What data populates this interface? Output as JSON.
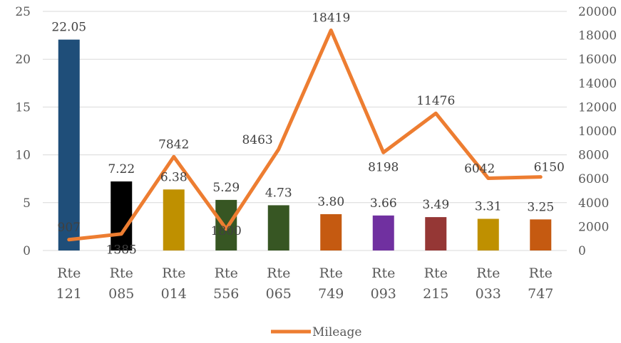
{
  "chart_data": {
    "type": "bar",
    "categories": [
      [
        "Rte",
        "121"
      ],
      [
        "Rte",
        "085"
      ],
      [
        "Rte",
        "014"
      ],
      [
        "Rte",
        "556"
      ],
      [
        "Rte",
        "065"
      ],
      [
        "Rte",
        "749"
      ],
      [
        "Rte",
        "093"
      ],
      [
        "Rte",
        "215"
      ],
      [
        "Rte",
        "033"
      ],
      [
        "Rte",
        "747"
      ]
    ],
    "bar_values": [
      22.05,
      7.22,
      6.38,
      5.29,
      4.73,
      3.8,
      3.66,
      3.49,
      3.31,
      3.25
    ],
    "bar_labels": [
      "22.05",
      "7.22",
      "6.38",
      "5.29",
      "4.73",
      "3.80",
      "3.66",
      "3.49",
      "3.31",
      "3.25"
    ],
    "bar_colors": [
      "#1f4e79",
      "#000000",
      "#bf9000",
      "#375623",
      "#375623",
      "#c55a11",
      "#7030a0",
      "#953735",
      "#bf9000",
      "#c55a11"
    ],
    "line_series": {
      "name": "Mileage",
      "values": [
        907,
        1385,
        7842,
        1800,
        8463,
        18419,
        8198,
        11476,
        6042,
        6150
      ],
      "labels": [
        "907",
        "1385",
        "7842",
        "1800",
        "8463",
        "18419",
        "8198",
        "11476",
        "6042",
        "6150"
      ],
      "color": "#ed7d31"
    },
    "y_left": {
      "min": 0,
      "max": 25,
      "ticks": [
        0,
        5,
        10,
        15,
        20,
        25
      ]
    },
    "y_right": {
      "min": 0,
      "max": 20000,
      "ticks": [
        0,
        2000,
        4000,
        6000,
        8000,
        10000,
        12000,
        14000,
        16000,
        18000,
        20000
      ]
    },
    "grid": true,
    "legend_position": "bottom",
    "title": "",
    "xlabel": "",
    "ylabel": ""
  }
}
